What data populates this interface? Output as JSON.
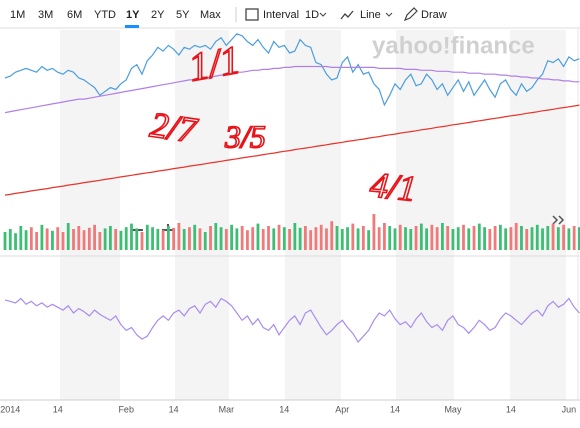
{
  "toolbar": {
    "ranges": [
      "1M",
      "3M",
      "6M",
      "YTD",
      "1Y",
      "2Y",
      "5Y",
      "Max"
    ],
    "selected_range": "1Y",
    "interval_label": "Interval",
    "interval": "1D",
    "chart_type": "Line",
    "draw": "Draw"
  },
  "chart_data": [
    {
      "type": "line",
      "watermark": "yahoo!finance",
      "annotations": [
        "1/1",
        "2/7",
        "3/5",
        "4/1"
      ],
      "categories": [
        null,
        "2014",
        null,
        null,
        null,
        null,
        null,
        null,
        null,
        null,
        "14",
        null,
        null,
        null,
        null,
        null,
        null,
        null,
        null,
        null,
        null,
        null,
        null,
        "Feb",
        null,
        null,
        null,
        null,
        null,
        null,
        null,
        null,
        "14",
        null,
        null,
        null,
        null,
        null,
        null,
        null,
        null,
        null,
        "Mar",
        null,
        null,
        null,
        null,
        null,
        null,
        null,
        null,
        null,
        null,
        "14",
        null,
        null,
        null,
        null,
        null,
        null,
        null,
        null,
        null,
        null,
        "Apr",
        null,
        null,
        null,
        null,
        null,
        null,
        null,
        null,
        null,
        "14",
        null,
        null,
        null,
        null,
        null,
        null,
        null,
        null,
        null,
        null,
        "May",
        null,
        null,
        null,
        null,
        null,
        null,
        null,
        null,
        null,
        null,
        "14",
        null,
        null,
        null,
        null,
        null,
        null,
        null,
        null,
        null,
        null,
        "Jun",
        null,
        null
      ],
      "ylim": [
        0,
        100
      ],
      "series": [
        {
          "color": "#4a9ee0",
          "values": [
            75,
            76,
            78,
            79,
            80,
            79,
            78,
            81,
            79,
            80,
            78,
            77,
            79,
            78,
            75,
            74,
            72,
            70,
            66,
            68,
            70,
            69,
            72,
            74,
            80,
            82,
            77,
            84,
            87,
            91,
            89,
            92,
            90,
            87,
            91,
            90,
            92,
            91,
            92,
            90,
            94,
            96,
            92,
            95,
            98,
            97,
            94,
            92,
            95,
            91,
            88,
            94,
            91,
            92,
            88,
            89,
            95,
            92,
            91,
            83,
            82,
            77,
            74,
            75,
            83,
            86,
            78,
            82,
            77,
            78,
            72,
            69,
            61,
            66,
            72,
            69,
            74,
            77,
            71,
            72,
            77,
            74,
            69,
            72,
            66,
            70,
            74,
            68,
            73,
            66,
            70,
            74,
            69,
            65,
            72,
            74,
            69,
            66,
            72,
            68,
            70,
            74,
            77,
            84,
            83,
            85,
            81,
            86,
            84,
            85
          ]
        },
        {
          "color": "#b07fe8",
          "values": [
            57,
            57.5,
            58,
            58.5,
            59,
            59.5,
            60,
            60.5,
            61,
            61.5,
            62,
            62.5,
            63,
            63.5,
            64,
            64,
            64.5,
            65,
            65.5,
            66,
            66.5,
            67,
            67.5,
            68,
            68.5,
            69,
            69.5,
            70,
            70.5,
            71,
            71.5,
            72,
            72.5,
            73,
            73.5,
            74,
            74,
            74.5,
            75,
            75.5,
            76,
            76.5,
            77,
            77.5,
            78,
            78,
            78.5,
            79,
            79,
            79.5,
            79.5,
            80,
            80,
            80.5,
            80.5,
            81,
            81,
            81,
            81,
            81,
            81,
            81,
            80.5,
            80.5,
            80.5,
            80.5,
            80.5,
            80.5,
            80.5,
            80.5,
            80.5,
            80,
            80,
            80,
            80,
            80,
            79.5,
            79.5,
            79.5,
            79,
            79,
            79,
            78.5,
            78.5,
            78.5,
            78,
            78,
            78,
            77.5,
            77.5,
            77.5,
            77,
            77,
            77,
            76.5,
            76.5,
            76,
            76,
            75.5,
            75.5,
            75,
            75,
            74.5,
            74.5,
            74,
            74,
            73.5,
            73.5,
            73,
            73
          ]
        },
        {
          "color": "#e8322a",
          "values": [
            14,
            14.4,
            14.9,
            15.3,
            15.7,
            16.2,
            16.6,
            17,
            17.4,
            17.9,
            18.3,
            18.7,
            19.2,
            19.6,
            20,
            20.5,
            20.9,
            21.3,
            21.7,
            22.2,
            22.6,
            23,
            23.5,
            23.9,
            24.3,
            24.8,
            25.2,
            25.6,
            26,
            26.5,
            26.9,
            27.3,
            27.8,
            28.2,
            28.6,
            29.1,
            29.5,
            29.9,
            30.3,
            30.8,
            31.2,
            31.6,
            32.1,
            32.5,
            32.9,
            33.4,
            33.8,
            34.2,
            34.6,
            35.1,
            35.5,
            35.9,
            36.4,
            36.8,
            37.2,
            37.7,
            38.1,
            38.5,
            38.9,
            39.4,
            39.8,
            40.2,
            40.7,
            41.1,
            41.5,
            42,
            42.4,
            42.8,
            43.2,
            43.7,
            44.1,
            44.5,
            45,
            45.4,
            45.8,
            46.3,
            46.7,
            47.1,
            47.5,
            48,
            48.4,
            48.8,
            49.3,
            49.7,
            50.1,
            50.6,
            51,
            51.4,
            51.8,
            52.3,
            52.7,
            53.1,
            53.6,
            54,
            54.4,
            54.9,
            55.3,
            55.7,
            56.1,
            56.6,
            57,
            57.4,
            57.9,
            58.3,
            58.7,
            59.2,
            59.6,
            60,
            60.4,
            60.9
          ]
        }
      ]
    },
    {
      "type": "bar",
      "ylim": [
        0,
        100
      ],
      "up_color": "#3cbf74",
      "down_color": "#f07a7a",
      "values": [
        30,
        35,
        28,
        40,
        33,
        38,
        30,
        42,
        36,
        32,
        38,
        30,
        45,
        35,
        40,
        33,
        37,
        42,
        30,
        36,
        40,
        35,
        32,
        38,
        44,
        36,
        30,
        42,
        38,
        35,
        33,
        40,
        37,
        45,
        35,
        38,
        42,
        36,
        30,
        40,
        45,
        38,
        35,
        42,
        36,
        40,
        33,
        38,
        44,
        35,
        40,
        36,
        42,
        38,
        35,
        45,
        37,
        40,
        33,
        38,
        42,
        36,
        48,
        40,
        35,
        38,
        44,
        36,
        40,
        33,
        60,
        38,
        45,
        40,
        36,
        42,
        38,
        35,
        40,
        44,
        36,
        42,
        38,
        45,
        40,
        35,
        38,
        42,
        36,
        40,
        44,
        38,
        35,
        40,
        42,
        36,
        38,
        45,
        40,
        35,
        38,
        42,
        36,
        40,
        44,
        38,
        42,
        36,
        40,
        38
      ]
    },
    {
      "type": "line",
      "ylim": [
        0,
        100
      ],
      "series": [
        {
          "color": "#a98cf0",
          "values": [
            69,
            68,
            67,
            70,
            66,
            68,
            65,
            67,
            64,
            66,
            64,
            62,
            65,
            60,
            63,
            61,
            58,
            62,
            59,
            57,
            55,
            58,
            52,
            48,
            50,
            45,
            42,
            44,
            50,
            55,
            58,
            55,
            60,
            62,
            58,
            63,
            65,
            60,
            66,
            68,
            64,
            70,
            68,
            65,
            60,
            55,
            58,
            52,
            56,
            50,
            48,
            52,
            45,
            50,
            55,
            58,
            52,
            60,
            62,
            56,
            50,
            45,
            48,
            52,
            55,
            50,
            46,
            40,
            44,
            48,
            55,
            60,
            58,
            62,
            56,
            52,
            54,
            50,
            56,
            60,
            54,
            50,
            52,
            48,
            55,
            58,
            52,
            50,
            46,
            50,
            55,
            52,
            48,
            50,
            56,
            60,
            58,
            55,
            52,
            56,
            60,
            62,
            58,
            65,
            68,
            64,
            66,
            70,
            64,
            60
          ]
        }
      ]
    }
  ]
}
